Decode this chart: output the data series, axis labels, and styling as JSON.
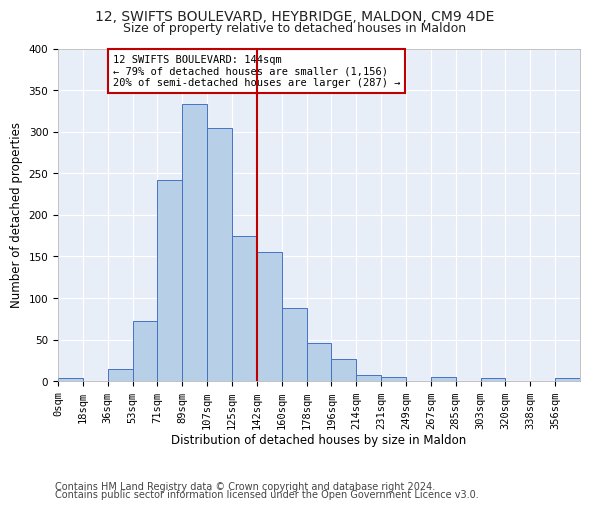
{
  "title_line1": "12, SWIFTS BOULEVARD, HEYBRIDGE, MALDON, CM9 4DE",
  "title_line2": "Size of property relative to detached houses in Maldon",
  "xlabel": "Distribution of detached houses by size in Maldon",
  "ylabel": "Number of detached properties",
  "bin_labels": [
    "0sqm",
    "18sqm",
    "36sqm",
    "53sqm",
    "71sqm",
    "89sqm",
    "107sqm",
    "125sqm",
    "142sqm",
    "160sqm",
    "178sqm",
    "196sqm",
    "214sqm",
    "231sqm",
    "249sqm",
    "267sqm",
    "285sqm",
    "303sqm",
    "320sqm",
    "338sqm",
    "356sqm"
  ],
  "bar_values": [
    4,
    0,
    15,
    72,
    242,
    333,
    305,
    174,
    155,
    88,
    46,
    27,
    8,
    5,
    0,
    5,
    0,
    4,
    0,
    0,
    4
  ],
  "bar_color": "#b8cfe8",
  "bar_edgecolor": "#4472c4",
  "vline_x_index": 8,
  "vline_color": "#c00000",
  "annotation_box_text": "12 SWIFTS BOULEVARD: 144sqm\n← 79% of detached houses are smaller (1,156)\n20% of semi-detached houses are larger (287) →",
  "annotation_box_color": "#c00000",
  "annotation_box_facecolor": "white",
  "ylim": [
    0,
    400
  ],
  "yticks": [
    0,
    50,
    100,
    150,
    200,
    250,
    300,
    350,
    400
  ],
  "background_color": "#e8eef8",
  "grid_color": "white",
  "footer_line1": "Contains HM Land Registry data © Crown copyright and database right 2024.",
  "footer_line2": "Contains public sector information licensed under the Open Government Licence v3.0.",
  "font_color": "#222222",
  "title_fontsize": 10,
  "subtitle_fontsize": 9,
  "axis_label_fontsize": 8.5,
  "tick_fontsize": 7.5,
  "footer_fontsize": 7,
  "annotation_fontsize": 7.5
}
